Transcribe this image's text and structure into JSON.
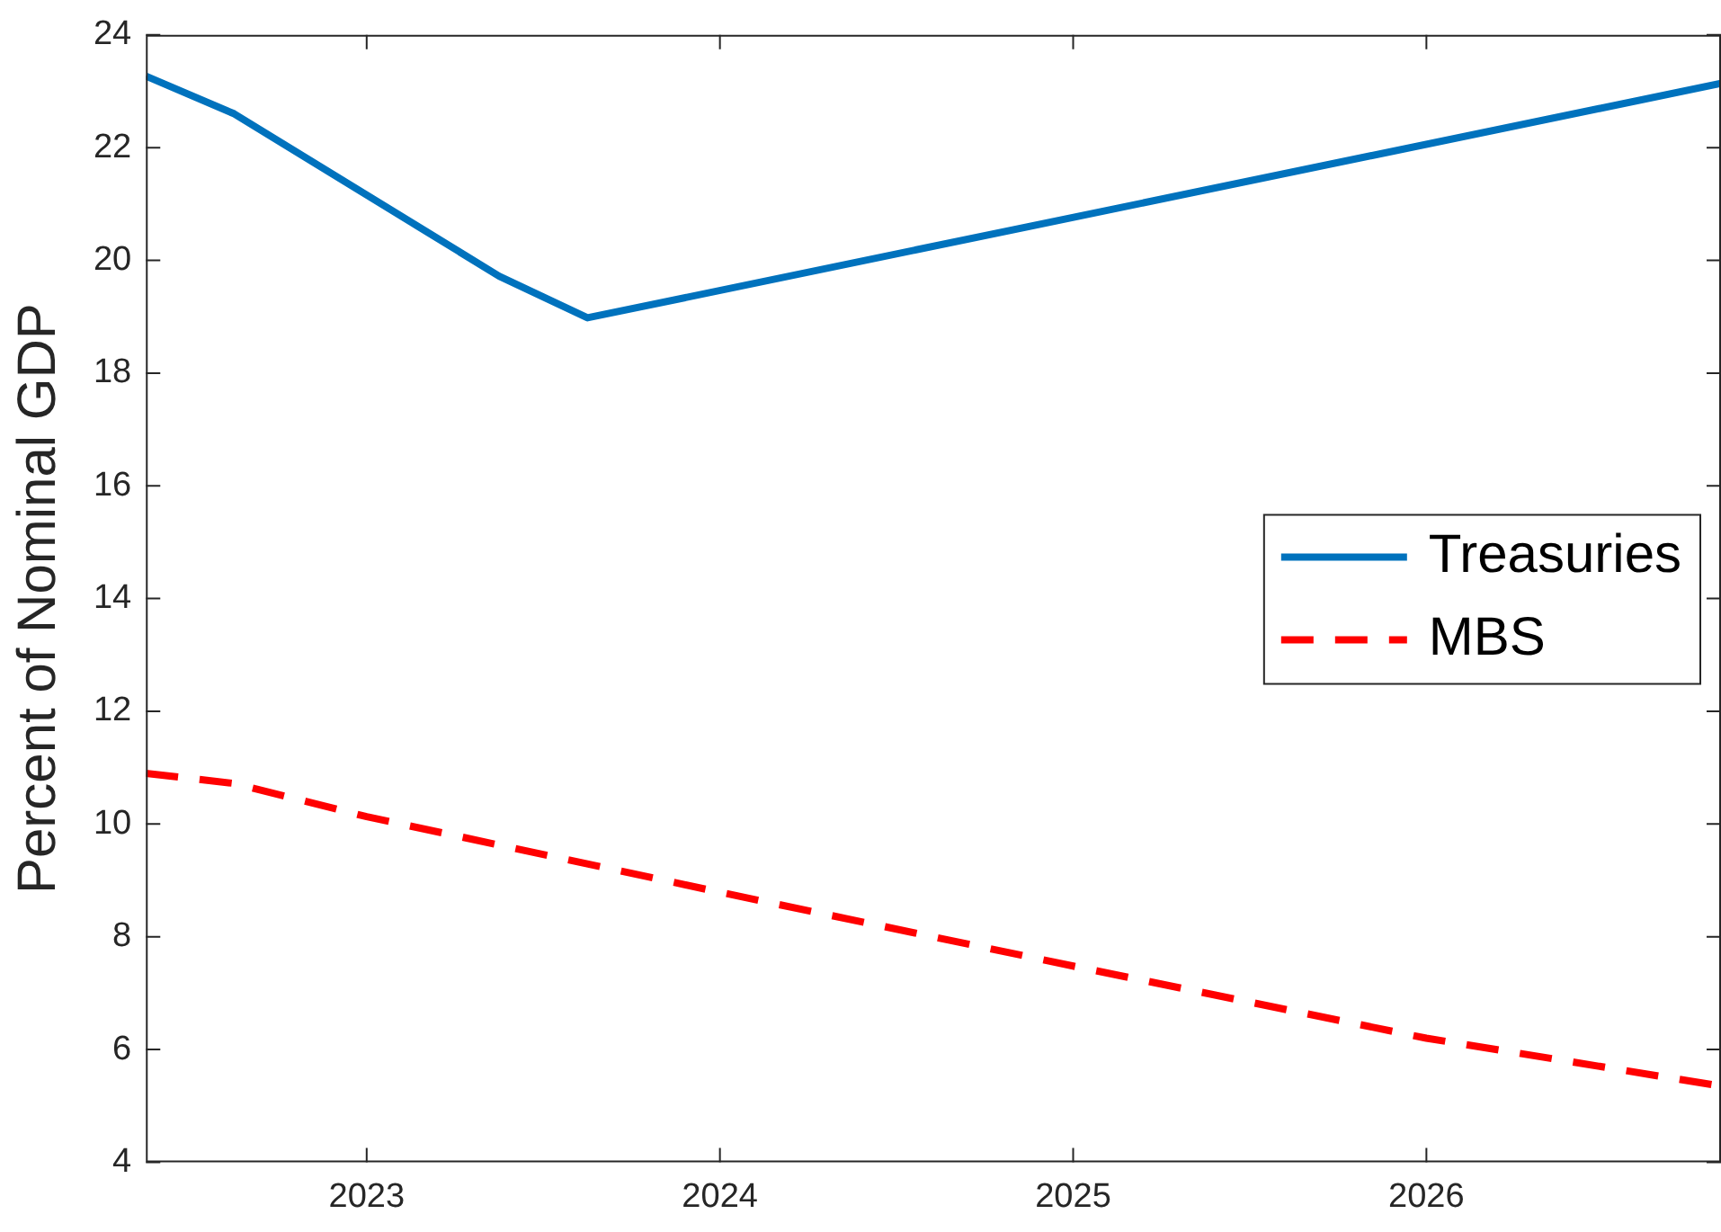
{
  "chart_data": {
    "type": "line",
    "ylabel": "Percent of Nominal GDP",
    "xlim": [
      2022.375,
      2026.834
    ],
    "xticks": [
      2023,
      2024,
      2025,
      2026
    ],
    "ylim": [
      4,
      24
    ],
    "yticks": [
      4,
      6,
      8,
      10,
      12,
      14,
      16,
      18,
      20,
      22,
      24
    ],
    "grid": false,
    "legend": "right",
    "marker": "none",
    "series": [
      {
        "name": "Treasuries",
        "color": "#0072bd",
        "line_style": "solid",
        "x": [
          2022.375,
          2022.625,
          2023.125,
          2023.375,
          2023.625,
          2026.834
        ],
        "values": [
          23.27,
          22.6,
          20.68,
          19.72,
          18.98,
          23.14
        ]
      },
      {
        "name": "MBS",
        "color": "#ff0000",
        "line_style": "dashed",
        "x": [
          2022.375,
          2022.625,
          2023,
          2024,
          2025,
          2026,
          2026.834
        ],
        "values": [
          10.9,
          10.72,
          10.13,
          8.79,
          7.48,
          6.2,
          5.35
        ]
      }
    ]
  }
}
